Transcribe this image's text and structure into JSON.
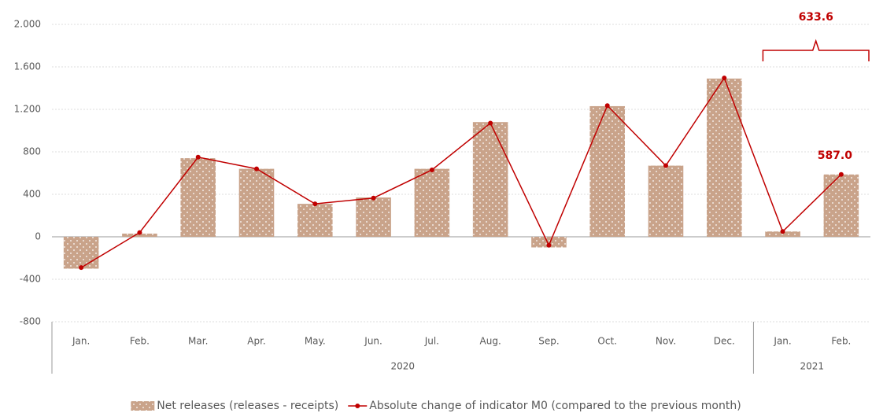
{
  "chart_data": {
    "type": "bar",
    "categories": [
      "Jan.",
      "Feb.",
      "Mar.",
      "Apr.",
      "May.",
      "Jun.",
      "Jul.",
      "Aug.",
      "Sep.",
      "Oct.",
      "Nov.",
      "Dec.",
      "Jan.",
      "Feb."
    ],
    "groups": [
      {
        "name": "2020",
        "start": 0,
        "end": 11
      },
      {
        "name": "2021",
        "start": 12,
        "end": 13
      }
    ],
    "series": [
      {
        "name": "Net releases (releases - receipts)",
        "type": "bar",
        "color": "#c9a38a",
        "values": [
          -300,
          30,
          740,
          640,
          310,
          370,
          640,
          1080,
          -100,
          1230,
          670,
          1490,
          50,
          587
        ]
      },
      {
        "name": "Absolute change of indicator M0 (compared to the previous month)",
        "type": "line",
        "color": "#c00000",
        "values": [
          -290,
          40,
          750,
          640,
          310,
          365,
          630,
          1070,
          -80,
          1235,
          670,
          1495,
          50,
          587
        ],
        "value_labels": [
          null,
          null,
          null,
          null,
          null,
          null,
          null,
          null,
          null,
          null,
          null,
          null,
          null,
          "587.0"
        ]
      }
    ],
    "annotation": 633.6,
    "ylim": [
      -800,
      2000
    ],
    "yticks": [
      {
        "value": -800,
        "label": "-800"
      },
      {
        "value": -400,
        "label": "-400"
      },
      0,
      400,
      800,
      {
        "value": 1200,
        "label": "1.200"
      },
      {
        "value": 1600,
        "label": "1.600"
      },
      {
        "value": 2000,
        "label": "2.000"
      }
    ],
    "grid": true
  }
}
